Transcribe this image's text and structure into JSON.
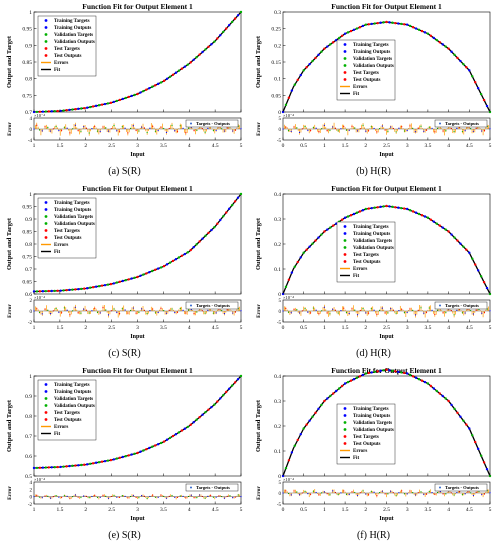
{
  "colors": {
    "training": "#0000ff",
    "validation": "#00b000",
    "test": "#ff0000",
    "errors": "#ff9900",
    "fit": "#000000",
    "targets_outputs_marker": "#3366cc"
  },
  "chart_data": [
    {
      "type": "line",
      "panel_caption": "(a) S(R)",
      "title": "Function Fit for Output Element 1",
      "xlabel": "Input",
      "ylabel": "Output and Target",
      "error_ylabel": "Error",
      "error_exponent_label": "×10⁻⁴",
      "legend_position": "top-left",
      "legend": [
        "Training Targets",
        "Training Outputs",
        "Validation Targets",
        "Validation Outputs",
        "Test Targets",
        "Test Outputs",
        "Errors",
        "Fit"
      ],
      "error_legend": [
        "Targets - Outputs"
      ],
      "error_legend_position": "top-right",
      "xlim": [
        1,
        5
      ],
      "x_ticks": [
        "1",
        "1.5",
        "2",
        "2.5",
        "3",
        "3.5",
        "4",
        "4.5",
        "5"
      ],
      "ylim": [
        0.7,
        1.0
      ],
      "y_ticks": [
        "0.7",
        "0.75",
        "0.8",
        "0.85",
        "0.9",
        "0.95",
        "1"
      ],
      "error_ylim": [
        -4,
        4
      ],
      "error_ticks": [
        "-4",
        "0",
        "4"
      ],
      "curve": {
        "x": [
          1,
          1.5,
          2,
          2.5,
          3,
          3.5,
          4,
          4.5,
          5
        ],
        "y": [
          0.7,
          0.703,
          0.712,
          0.728,
          0.754,
          0.792,
          0.845,
          0.913,
          1.0
        ]
      },
      "error_amplitude": 2.5
    },
    {
      "type": "line",
      "panel_caption": "(b) H(R)",
      "title": "Function Fit for Output Element 1",
      "xlabel": "Input",
      "ylabel": "Output and Target",
      "error_ylabel": "Error",
      "error_exponent_label": "×10⁻⁴",
      "legend_position": "center",
      "legend": [
        "Training Targets",
        "Training Outputs",
        "Validation Targets",
        "Validation Outputs",
        "Test Targets",
        "Test Outputs",
        "Errors",
        "Fit"
      ],
      "error_legend": [
        "Targets - Outputs"
      ],
      "error_legend_position": "top-right",
      "xlim": [
        0,
        5
      ],
      "x_ticks": [
        "0",
        "0.5",
        "1",
        "1.5",
        "2",
        "2.5",
        "3",
        "3.5",
        "4",
        "4.5",
        "5"
      ],
      "ylim": [
        0,
        0.3
      ],
      "y_ticks": [
        "0",
        "0.05",
        "0.1",
        "0.15",
        "0.2",
        "0.25",
        "0.3"
      ],
      "error_ylim": [
        -5,
        5
      ],
      "error_ticks": [
        "-5",
        "0",
        "5"
      ],
      "curve": {
        "x": [
          0,
          0.25,
          0.5,
          1,
          1.5,
          2,
          2.5,
          3,
          3.5,
          4,
          4.5,
          5
        ],
        "y": [
          0.0,
          0.075,
          0.125,
          0.19,
          0.235,
          0.262,
          0.27,
          0.262,
          0.235,
          0.19,
          0.125,
          0.0
        ]
      },
      "error_amplitude": 3.0
    },
    {
      "type": "line",
      "panel_caption": "(c) S(R)",
      "title": "Function Fit for Output Element 1",
      "xlabel": "Input",
      "ylabel": "Output and Target",
      "error_ylabel": "Error",
      "error_exponent_label": "×10⁻⁴",
      "legend_position": "top-left",
      "legend": [
        "Training Targets",
        "Training Outputs",
        "Validation Targets",
        "Validation Outputs",
        "Test Targets",
        "Test Outputs",
        "Errors",
        "Fit"
      ],
      "error_legend": [
        "Targets - Outputs"
      ],
      "error_legend_position": "top-right",
      "xlim": [
        1,
        5
      ],
      "x_ticks": [
        "1",
        "1.5",
        "2",
        "2.5",
        "3",
        "3.5",
        "4",
        "4.5",
        "5"
      ],
      "ylim": [
        0.6,
        1.0
      ],
      "y_ticks": [
        "0.6",
        "0.65",
        "0.7",
        "0.75",
        "0.8",
        "0.85",
        "0.9",
        "0.95",
        "1"
      ],
      "error_ylim": [
        -2,
        2
      ],
      "error_ticks": [
        "-2",
        "0",
        "2"
      ],
      "curve": {
        "x": [
          1,
          1.5,
          2,
          2.5,
          3,
          3.5,
          4,
          4.5,
          5
        ],
        "y": [
          0.61,
          0.613,
          0.622,
          0.64,
          0.668,
          0.71,
          0.77,
          0.87,
          1.0
        ]
      },
      "error_amplitude": 1.2
    },
    {
      "type": "line",
      "panel_caption": "(d) H(R)",
      "title": "Function Fit for Output Element 1",
      "xlabel": "Input",
      "ylabel": "Output and Target",
      "error_ylabel": "Error",
      "error_exponent_label": "×10⁻⁴",
      "legend_position": "center",
      "legend": [
        "Training Targets",
        "Training Outputs",
        "Validation Targets",
        "Validation Outputs",
        "Test Targets",
        "Test Outputs",
        "Errors",
        "Fit"
      ],
      "error_legend": [
        "Targets - Outputs"
      ],
      "error_legend_position": "top-right",
      "xlim": [
        0,
        5
      ],
      "x_ticks": [
        "0",
        "0.5",
        "1",
        "1.5",
        "2",
        "2.5",
        "3",
        "3.5",
        "4",
        "4.5",
        "5"
      ],
      "ylim": [
        0,
        0.4
      ],
      "y_ticks": [
        "0",
        "0.1",
        "0.2",
        "0.3",
        "0.4"
      ],
      "error_ylim": [
        -5,
        5
      ],
      "error_ticks": [
        "-5",
        "0",
        "5"
      ],
      "curve": {
        "x": [
          0,
          0.25,
          0.5,
          1,
          1.5,
          2,
          2.5,
          3,
          3.5,
          4,
          4.5,
          5
        ],
        "y": [
          0.0,
          0.1,
          0.165,
          0.25,
          0.305,
          0.34,
          0.352,
          0.34,
          0.305,
          0.25,
          0.165,
          0.0
        ]
      },
      "error_amplitude": 3.0
    },
    {
      "type": "line",
      "panel_caption": "(e) S(R)",
      "title": "Function Fit for Output Element 1",
      "xlabel": "Input",
      "ylabel": "Output and Target",
      "error_ylabel": "Error",
      "error_exponent_label": "×10⁻⁴",
      "legend_position": "top-left",
      "legend": [
        "Training Targets",
        "Training Outputs",
        "Validation Targets",
        "Validation Outputs",
        "Test Targets",
        "Test Outputs",
        "Errors",
        "Fit"
      ],
      "error_legend": [
        "Targets - Outputs"
      ],
      "error_legend_position": "top-right",
      "xlim": [
        1,
        5
      ],
      "x_ticks": [
        "1",
        "1.5",
        "2",
        "2.5",
        "3",
        "3.5",
        "4",
        "4.5",
        "5"
      ],
      "ylim": [
        0.5,
        1.0
      ],
      "y_ticks": [
        "0.5",
        "0.6",
        "0.7",
        "0.8",
        "0.9",
        "1"
      ],
      "error_ylim": [
        -2,
        4
      ],
      "error_ticks": [
        "-2",
        "0",
        "2",
        "4"
      ],
      "curve": {
        "x": [
          1,
          1.5,
          2,
          2.5,
          3,
          3.5,
          4,
          4.5,
          5
        ],
        "y": [
          0.54,
          0.545,
          0.557,
          0.58,
          0.615,
          0.67,
          0.75,
          0.86,
          1.0
        ]
      },
      "error_amplitude": 0.8
    },
    {
      "type": "line",
      "panel_caption": "(f) H(R)",
      "title": "Function Fit for Output Element 1",
      "xlabel": "Input",
      "ylabel": "Output and Target",
      "error_ylabel": "Error",
      "error_exponent_label": "×10⁻⁴",
      "legend_position": "center",
      "legend": [
        "Training Targets",
        "Training Outputs",
        "Validation Targets",
        "Validation Outputs",
        "Test Targets",
        "Test Outputs",
        "Errors",
        "Fit"
      ],
      "error_legend": [
        "Targets - Outputs"
      ],
      "error_legend_position": "top-right",
      "xlim": [
        0,
        5
      ],
      "x_ticks": [
        "0",
        "0.5",
        "1",
        "1.5",
        "2",
        "2.5",
        "3",
        "3.5",
        "4",
        "4.5",
        "5"
      ],
      "ylim": [
        0,
        0.4
      ],
      "y_ticks": [
        "0",
        "0.1",
        "0.2",
        "0.3",
        "0.4"
      ],
      "error_ylim": [
        -5,
        5
      ],
      "error_ticks": [
        "-5",
        "0",
        "5"
      ],
      "curve": {
        "x": [
          0,
          0.25,
          0.5,
          1,
          1.5,
          2,
          2.5,
          3,
          3.5,
          4,
          4.5,
          5
        ],
        "y": [
          0.0,
          0.11,
          0.19,
          0.3,
          0.37,
          0.41,
          0.425,
          0.41,
          0.37,
          0.3,
          0.19,
          0.0
        ]
      },
      "error_amplitude": 2.0
    }
  ]
}
